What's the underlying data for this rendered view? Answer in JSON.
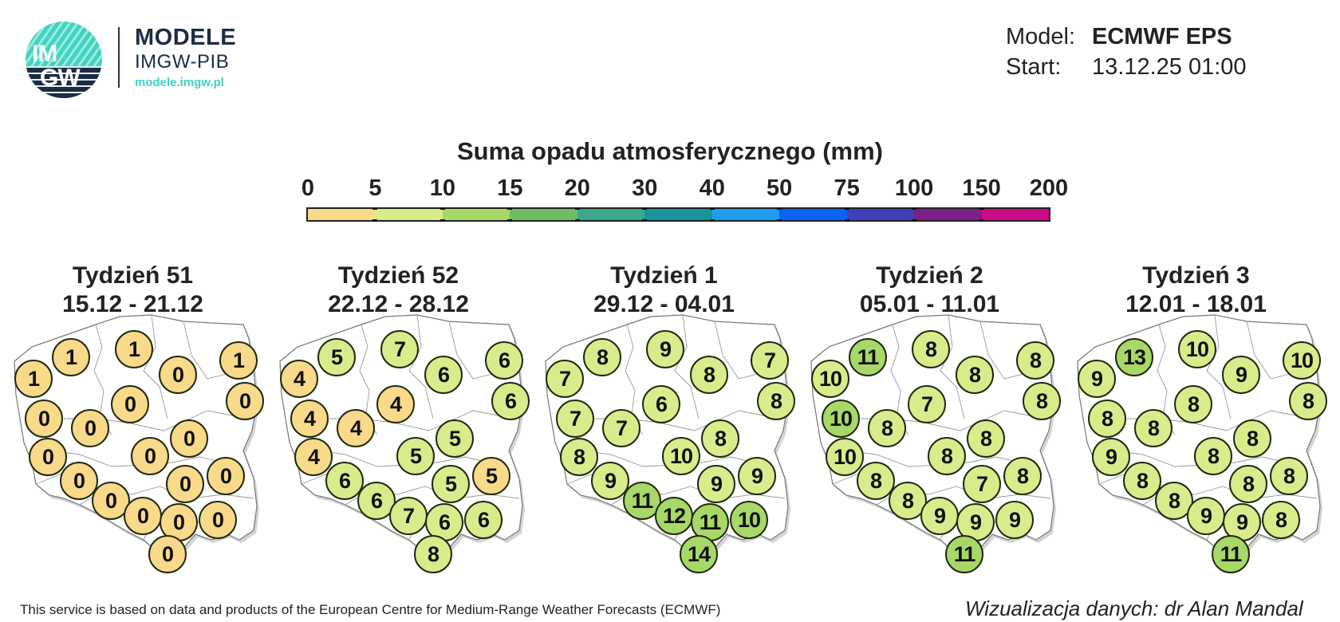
{
  "header": {
    "logo": {
      "line1": "IM",
      "line2": "GW"
    },
    "brand_title": "MODELE",
    "brand_subtitle": "IMGW-PIB",
    "brand_url": "modele.imgw.pl",
    "model_label": "Model:",
    "model_value": "ECMWF EPS",
    "start_label": "Start:",
    "start_value": "13.12.25 01:00"
  },
  "footer": {
    "left": "This service is based on data and products of the European Centre for Medium-Range Weather Forecasts (ECMWF)",
    "right": "Wizualizacja danych: dr Alan Mandal"
  },
  "chart_data": {
    "type": "heatmap",
    "title": "Suma opadu atmosferycznego (mm)",
    "colorbar": {
      "ticks": [
        "0",
        "5",
        "10",
        "15",
        "20",
        "30",
        "40",
        "50",
        "75",
        "100",
        "150",
        "200"
      ],
      "colors": [
        "#f9d98a",
        "#d9ec8c",
        "#a8d868",
        "#6cc061",
        "#3aa88a",
        "#17949c",
        "#1e9df0",
        "#0a63f5",
        "#3f3fb8",
        "#7a2088",
        "#cc0a8a"
      ]
    },
    "station_positions": [
      [
        42,
        150
      ],
      [
        89,
        123
      ],
      [
        168,
        113
      ],
      [
        223,
        145
      ],
      [
        299,
        127
      ],
      [
        307,
        178
      ],
      [
        55,
        200
      ],
      [
        113,
        212
      ],
      [
        163,
        182
      ],
      [
        60,
        248
      ],
      [
        188,
        247
      ],
      [
        237,
        225
      ],
      [
        99,
        278
      ],
      [
        139,
        303
      ],
      [
        179,
        322
      ],
      [
        232,
        282
      ],
      [
        283,
        272
      ],
      [
        224,
        330
      ],
      [
        273,
        327
      ],
      [
        210,
        370
      ]
    ],
    "panels": [
      {
        "title": "Tydzień 51",
        "dates": "15.12 - 21.12",
        "values": [
          1,
          1,
          1,
          0,
          1,
          0,
          0,
          0,
          0,
          0,
          0,
          0,
          0,
          0,
          0,
          0,
          0,
          0,
          0,
          0
        ],
        "classes": [
          0,
          0,
          0,
          0,
          0,
          0,
          0,
          0,
          0,
          0,
          0,
          0,
          0,
          0,
          0,
          0,
          0,
          0,
          0,
          0
        ]
      },
      {
        "title": "Tydzień 52",
        "dates": "22.12 - 28.12",
        "values": [
          4,
          5,
          7,
          6,
          6,
          6,
          4,
          4,
          4,
          4,
          5,
          5,
          6,
          6,
          7,
          5,
          5,
          6,
          6,
          8
        ],
        "classes": [
          0,
          1,
          1,
          1,
          1,
          1,
          0,
          0,
          0,
          0,
          1,
          1,
          1,
          1,
          1,
          1,
          0,
          1,
          1,
          1
        ]
      },
      {
        "title": "Tydzień 1",
        "dates": "29.12 - 04.01",
        "values": [
          7,
          8,
          9,
          8,
          7,
          8,
          7,
          7,
          6,
          8,
          10,
          8,
          9,
          11,
          12,
          9,
          9,
          11,
          10,
          14
        ],
        "classes": [
          1,
          1,
          1,
          1,
          1,
          1,
          1,
          1,
          1,
          1,
          1,
          1,
          1,
          2,
          2,
          1,
          1,
          2,
          2,
          2
        ]
      },
      {
        "title": "Tydzień 2",
        "dates": "05.01 - 11.01",
        "values": [
          10,
          11,
          8,
          8,
          8,
          8,
          10,
          8,
          7,
          10,
          8,
          8,
          8,
          8,
          9,
          7,
          8,
          9,
          9,
          11
        ],
        "classes": [
          1,
          2,
          1,
          1,
          1,
          1,
          2,
          1,
          1,
          1,
          1,
          1,
          1,
          1,
          1,
          1,
          1,
          1,
          1,
          2
        ]
      },
      {
        "title": "Tydzień 3",
        "dates": "12.01 - 18.01",
        "values": [
          9,
          13,
          10,
          9,
          10,
          8,
          8,
          8,
          8,
          9,
          8,
          8,
          8,
          8,
          9,
          8,
          8,
          9,
          8,
          11
        ],
        "classes": [
          1,
          2,
          1,
          1,
          1,
          1,
          1,
          1,
          1,
          1,
          1,
          1,
          1,
          1,
          1,
          1,
          1,
          1,
          1,
          2
        ]
      }
    ]
  }
}
